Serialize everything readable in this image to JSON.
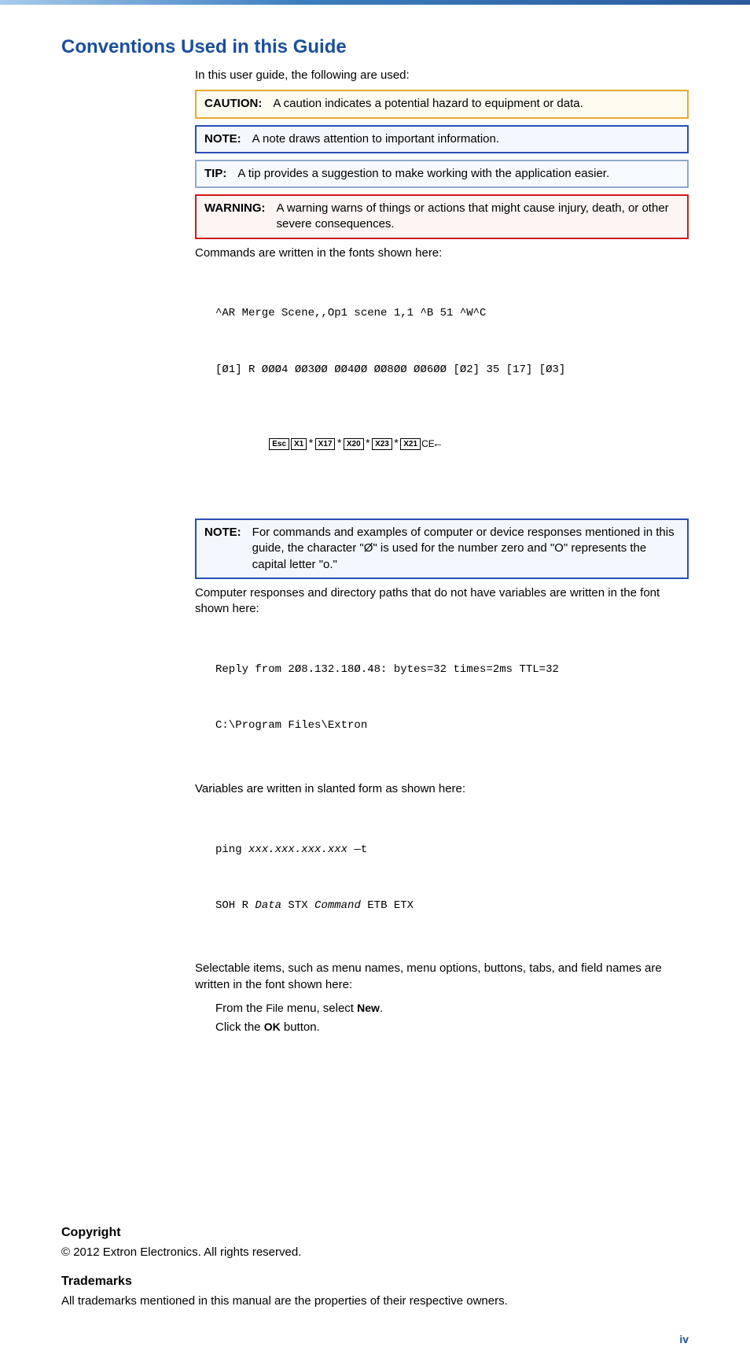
{
  "colors": {
    "heading": "#1a4f9c",
    "caution_border": "#e8a932",
    "caution_bg": "#fefbf1",
    "note_border": "#2a4fb3",
    "note_bg": "#f4f7fd",
    "tip_border": "#8fa9c9",
    "tip_bg": "#f7fafd",
    "warning_border": "#d11919",
    "warning_bg": "#fdf4f4",
    "pagenum": "#1a4f9c"
  },
  "heading": "Conventions Used in this Guide",
  "intro": "In this user guide, the following are used:",
  "caution": {
    "label": "CAUTION:",
    "text": "A caution indicates a potential hazard to equipment or data."
  },
  "note1": {
    "label": "NOTE:",
    "text": "A note draws attention to important information."
  },
  "tip": {
    "label": "TIP:",
    "text": "A tip provides a suggestion to make working with the application easier."
  },
  "warning": {
    "label": "WARNING:",
    "text": "A warning warns of things or actions that might cause injury, death, or other severe consequences."
  },
  "commands_intro": "Commands are written in the fonts shown here:",
  "cmd_line1": "^AR Merge Scene,,Op1 scene 1,1 ^B 51 ^W^C",
  "cmd_line2": "[Ø1] R ØØØ4 ØØ3ØØ ØØ4ØØ ØØ8ØØ ØØ6ØØ [Ø2] 35 [17] [Ø3]",
  "keycaps": {
    "esc": "Esc",
    "x1": "X1",
    "x17": "X17",
    "x20": "X20",
    "x23": "X23",
    "x21": "X21",
    "star": "*",
    "ce": "CE",
    "arrow": "←"
  },
  "note2": {
    "label": "NOTE:",
    "text": "For commands and examples of computer or device responses mentioned in this guide, the character \"Ø\" is used for the number zero and \"O\" represents the capital letter \"o.\""
  },
  "responses_intro": "Computer responses and directory paths that do not have variables are written in the font shown here:",
  "resp_line1": "Reply from 2Ø8.132.18Ø.48: bytes=32 times=2ms TTL=32",
  "resp_line2": "C:\\Program Files\\Extron",
  "variables_intro": "Variables are written in slanted form as shown here:",
  "var_line1a": "ping ",
  "var_line1b": "xxx.xxx.xxx.xxx",
  "var_line1c": " —t",
  "var_line2a": "SOH R ",
  "var_line2b": "Data",
  "var_line2c": " STX ",
  "var_line2d": "Command",
  "var_line2e": " ETB ETX",
  "selectable_intro": "Selectable items, such as menu names, menu options, buttons, tabs, and field names are written in the font shown here:",
  "menu1a": "From the ",
  "menu1b": "File",
  "menu1c": " menu, select ",
  "menu1d": "New",
  "menu1e": ".",
  "menu2a": "Click the ",
  "menu2b": "OK",
  "menu2c": " button.",
  "copyright_h": "Copyright",
  "copyright_t": "© 2012 Extron Electronics. All rights reserved.",
  "trademarks_h": "Trademarks",
  "trademarks_t": "All trademarks mentioned in this manual are the properties of their respective owners.",
  "page_num": "iv"
}
